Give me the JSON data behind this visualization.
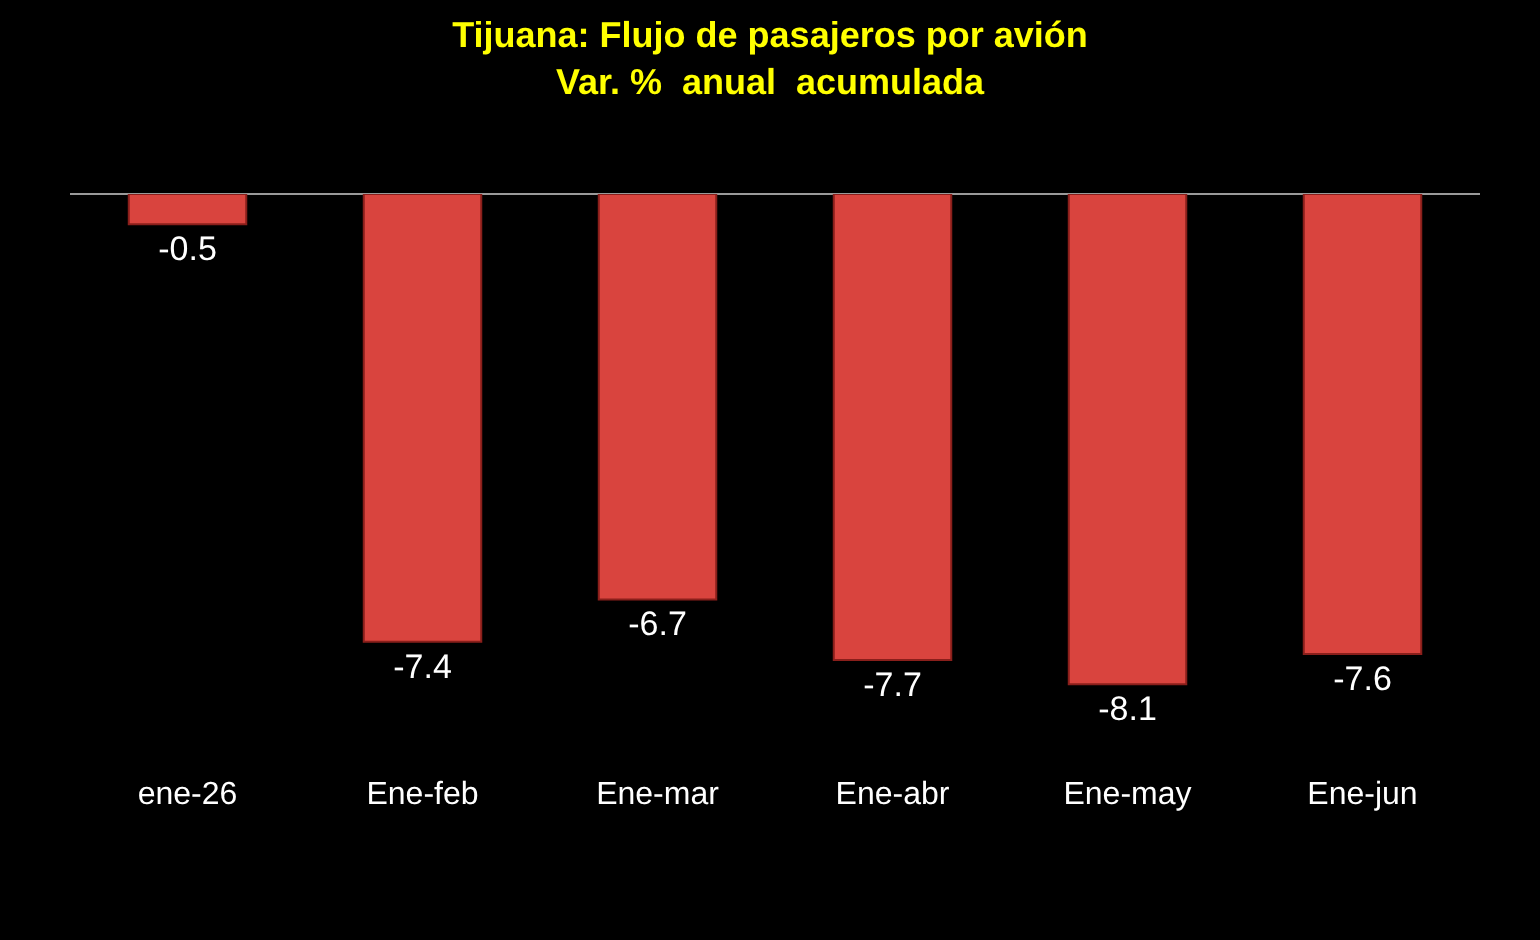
{
  "chart_data": {
    "type": "bar",
    "title": "Tijuana: Flujo de pasajeros por avión\nVar. %  anual  acumulada",
    "categories": [
      "ene-26",
      "Ene-feb",
      "Ene-mar",
      "Ene-abr",
      "Ene-may",
      "Ene-jun"
    ],
    "values": [
      -0.5,
      -7.4,
      -6.7,
      -7.7,
      -8.1,
      -7.6
    ],
    "color": "#d9443e",
    "data_labels": true,
    "grid": false,
    "legend": false
  }
}
